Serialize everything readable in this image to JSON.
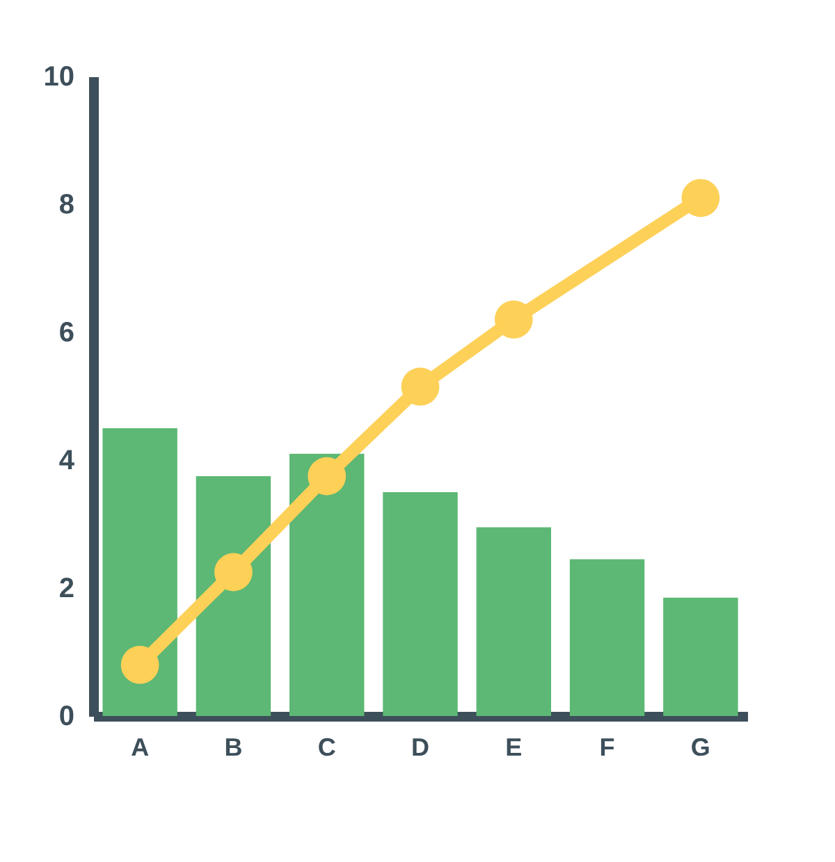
{
  "chart_data": {
    "type": "bar",
    "categories": [
      "A",
      "B",
      "C",
      "D",
      "E",
      "F",
      "G"
    ],
    "series": [
      {
        "color": "#5cb874",
        "values": [
          4.5,
          3.75,
          4.1,
          3.5,
          2.95,
          2.45,
          1.85
        ]
      },
      {
        "type": "line",
        "color": "#fdd058",
        "marker": "circle",
        "values": [
          0.8,
          2.25,
          3.75,
          5.15,
          6.2,
          null,
          8.1
        ]
      }
    ],
    "ylim": [
      0,
      10
    ],
    "yticks": [
      0,
      2,
      4,
      6,
      8,
      10
    ],
    "grid": false
  }
}
